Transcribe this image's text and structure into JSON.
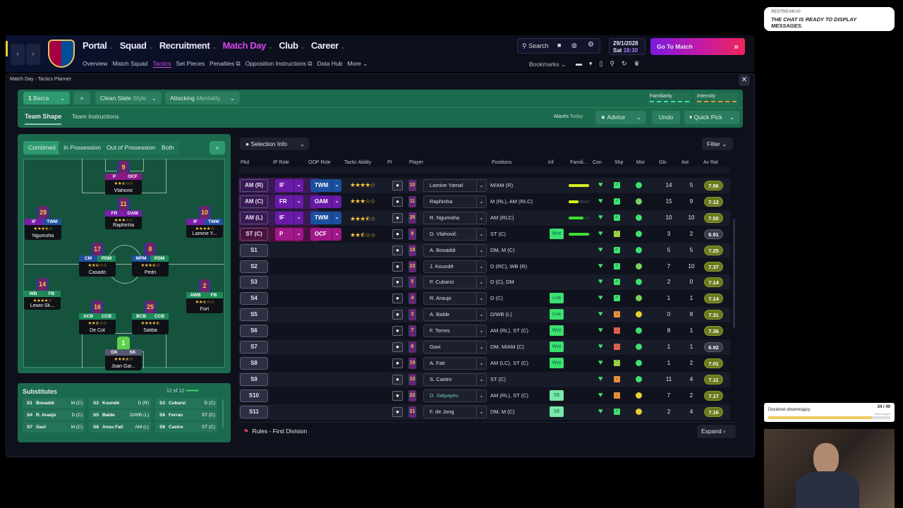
{
  "nav": {
    "main": [
      "Portal",
      "Squad",
      "Recruitment",
      "Match Day",
      "Club",
      "Career"
    ],
    "active_main": "Match Day",
    "sub": [
      "Overview",
      "Match Squad",
      "Tactics",
      "Set Pieces",
      "Penalties",
      "Opposition Instructions",
      "Data Hub",
      "More"
    ],
    "active_sub": "Tactics",
    "search": "Search",
    "date": "29/1/2028",
    "day": "Sat",
    "time": "18:30",
    "go_to_match": "Go To Match",
    "bookmarks": "Bookmarks"
  },
  "breadcrumb": [
    "Match Day",
    "Tactics Planner"
  ],
  "tactic": {
    "slot": "1",
    "name": "Barca",
    "add": "+",
    "style_value": "Clean Slate",
    "style_label": "Style",
    "mentality_value": "Attacking",
    "mentality_label": "Mentality",
    "familiarity": "Familiarity",
    "intensity": "Intensity",
    "tabs": [
      "Team Shape",
      "Team Instructions"
    ],
    "opponent": "Alavés",
    "opponent_when": "Today",
    "advice": "Advice",
    "undo": "Undo",
    "quick_pick": "Quick Pick"
  },
  "pitch": {
    "view_tabs": [
      "Combined",
      "In Possession",
      "Out of Possession",
      "Both"
    ],
    "active_view": "Combined",
    "players": [
      {
        "num": "9",
        "ip": "P",
        "oop": "OCF",
        "stars": 2.5,
        "name": "Vlahović"
      },
      {
        "num": "11",
        "ip": "FR",
        "oop": "OAM",
        "stars": 3,
        "name": "Raphinha"
      },
      {
        "num": "28",
        "ip": "IF",
        "oop": "TWM",
        "stars": 3.5,
        "name": "Ngumoha"
      },
      {
        "num": "10",
        "ip": "IF",
        "oop": "TWM",
        "stars": 4,
        "name": "Lamine Y..."
      },
      {
        "num": "17",
        "ip": "CM",
        "oop": "PDM",
        "stars": 2.5,
        "name": "Casadó"
      },
      {
        "num": "8",
        "ip": "MPM",
        "oop": "PDM",
        "stars": 3.5,
        "name": "Pedri"
      },
      {
        "num": "14",
        "ip": "WB",
        "oop": "FB",
        "stars": 4,
        "name": "Lewis-Sk..."
      },
      {
        "num": "2",
        "ip": "AWB",
        "oop": "FB",
        "stars": 2.5,
        "name": "Fort"
      },
      {
        "num": "16",
        "ip": "ACB",
        "oop": "CCB",
        "stars": 2.5,
        "name": "De Cot"
      },
      {
        "num": "25",
        "ip": "BCB",
        "oop": "CCB",
        "stars": 4.5,
        "name": "Saliba"
      },
      {
        "num": "1",
        "ip": "GK",
        "oop": "SK",
        "stars": 3.5,
        "name": "Joan Gar..."
      }
    ]
  },
  "substitutes": {
    "title": "Substitutes",
    "count": "12 of 12",
    "items": [
      {
        "slot": "S1",
        "name": "Bouaddi",
        "pos": "M (C)"
      },
      {
        "slot": "S2",
        "name": "Koundé",
        "pos": "D (R)"
      },
      {
        "slot": "S3",
        "name": "Cubarsí",
        "pos": "D (C)"
      },
      {
        "slot": "S4",
        "name": "R. Araújo",
        "pos": "D (C)"
      },
      {
        "slot": "S5",
        "name": "Balde",
        "pos": "D/WB (L)"
      },
      {
        "slot": "S6",
        "name": "Ferran",
        "pos": "ST (C)"
      },
      {
        "slot": "S7",
        "name": "Gavi",
        "pos": "M (C)"
      },
      {
        "slot": "S8",
        "name": "Ansu Fati",
        "pos": "AM (L)"
      },
      {
        "slot": "S9",
        "name": "Castro",
        "pos": "ST (C)"
      }
    ]
  },
  "selection": {
    "info_button": "Selection Info",
    "filter": "Filter",
    "columns": [
      "Pkd",
      "IP Role",
      "OOP Role",
      "Tactic Ability",
      "PI",
      "Player",
      "Positions",
      "Inf",
      "Famili...",
      "Con",
      "Shp",
      "Mor",
      "Gls",
      "Ast",
      "Av Rat"
    ],
    "rows": [
      {
        "pkd": "AM (R)",
        "ip": "IF",
        "ip_color": "#6a1aa8",
        "oop": "TWM",
        "oop_color": "#1c4fa0",
        "stars": 4,
        "num": "10",
        "player": "Lamine Yamal",
        "positions": "M/AM (R)",
        "inf": "",
        "famil": 0.95,
        "famil_color": "#d8f020",
        "shp": "good",
        "mor": "#3ce070",
        "gls": "14",
        "ast": "5",
        "rating": "7.56",
        "highlight": "#3a1a55"
      },
      {
        "pkd": "AM (C)",
        "ip": "FR",
        "ip_color": "#6a1aa8",
        "oop": "OAM",
        "oop_color": "#6a1aa8",
        "stars": 3,
        "num": "11",
        "player": "Raphinha",
        "positions": "M (RL), AM (RLC)",
        "inf": "",
        "famil": 0.45,
        "famil_color": "#d8f020",
        "shp": "good",
        "mor": "#7ad060",
        "gls": "15",
        "ast": "9",
        "rating": "7.12",
        "highlight": "#3a1a55"
      },
      {
        "pkd": "AM (L)",
        "ip": "IF",
        "ip_color": "#6a1aa8",
        "oop": "TWM",
        "oop_color": "#1c4fa0",
        "stars": 3.5,
        "num": "28",
        "player": "R. Ngumoha",
        "positions": "AM (RLC)",
        "inf": "",
        "famil": 0.7,
        "famil_color": "#3ce030",
        "shp": "good",
        "mor": "#3ce070",
        "gls": "10",
        "ast": "10",
        "rating": "7.50",
        "highlight": "#3a1a55"
      },
      {
        "pkd": "ST (C)",
        "ip": "P",
        "ip_color": "#a0188a",
        "oop": "OCF",
        "oop_color": "#a0188a",
        "stars": 2.5,
        "num": "9",
        "player": "D. Vlahović",
        "positions": "ST (C)",
        "inf": "Wnt",
        "famil": 0.95,
        "famil_color": "#3ce030",
        "shp": "up",
        "mor": "#3ce070",
        "gls": "3",
        "ast": "2",
        "rating": "6.91",
        "highlight": "#4a1240"
      },
      {
        "pkd": "S1",
        "stars": 0,
        "num": "18",
        "player": "A. Bouaddi",
        "positions": "DM, M (C)",
        "inf": "",
        "shp": "good",
        "mor": "#3ce070",
        "gls": "5",
        "ast": "5",
        "rating": "7.25"
      },
      {
        "pkd": "S2",
        "stars": 0,
        "num": "23",
        "player": "J. Koundé",
        "positions": "D (RC), WB (R)",
        "inf": "",
        "shp": "good",
        "mor": "#7ad060",
        "gls": "7",
        "ast": "10",
        "rating": "7.37"
      },
      {
        "pkd": "S3",
        "stars": 0,
        "num": "5",
        "player": "P. Cubarsí",
        "positions": "D (C), DM",
        "inf": "",
        "shp": "good",
        "mor": "#3ce070",
        "gls": "2",
        "ast": "0",
        "rating": "7.14"
      },
      {
        "pkd": "S4",
        "stars": 0,
        "num": "4",
        "player": "R. Araujo",
        "positions": "D (C)",
        "inf": "Loa",
        "shp": "good",
        "mor": "#7ad060",
        "gls": "1",
        "ast": "1",
        "rating": "7.14"
      },
      {
        "pkd": "S5",
        "stars": 0,
        "num": "3",
        "player": "A. Balde",
        "positions": "D/WB (L)",
        "inf": "Loa",
        "shp": "down",
        "mor": "#e8d030",
        "gls": "0",
        "ast": "8",
        "rating": "7.31"
      },
      {
        "pkd": "S6",
        "stars": 0,
        "num": "7",
        "player": "F. Torres",
        "positions": "AM (RL), ST (C)",
        "inf": "Wnt",
        "shp": "bad",
        "mor": "#3ce070",
        "gls": "8",
        "ast": "1",
        "rating": "7.36"
      },
      {
        "pkd": "S7",
        "stars": 0,
        "num": "6",
        "player": "Gavi",
        "positions": "DM, M/AM (C)",
        "inf": "Wnt",
        "shp": "bad",
        "mor": "#3ce070",
        "gls": "1",
        "ast": "1",
        "rating": "6.92"
      },
      {
        "pkd": "S8",
        "stars": 0,
        "num": "19",
        "player": "A. Fati",
        "positions": "AM (LC), ST (C)",
        "inf": "Wnt",
        "shp": "up",
        "mor": "#3ce070",
        "gls": "1",
        "ast": "2",
        "rating": "7.01"
      },
      {
        "pkd": "S9",
        "stars": 0,
        "num": "15",
        "player": "S. Castro",
        "positions": "ST (C)",
        "inf": "",
        "shp": "down",
        "mor": "#3ce070",
        "gls": "11",
        "ast": "4",
        "rating": "7.11"
      },
      {
        "pkd": "S10",
        "stars": 0,
        "num": "22",
        "player": "D. Satpayev",
        "positions": "AM (RL), ST (C)",
        "inf": "Slt",
        "shp": "down",
        "mor": "#e8d030",
        "gls": "7",
        "ast": "2",
        "rating": "7.17",
        "player_color": "#6fc8c8"
      },
      {
        "pkd": "S11",
        "stars": 0,
        "num": "21",
        "player": "F. de Jong",
        "positions": "DM, M (C)",
        "inf": "Slt",
        "shp": "good",
        "mor": "#e8d030",
        "gls": "2",
        "ast": "4",
        "rating": "7.16"
      }
    ],
    "rules": "Rules - First Division",
    "expand": "Expand"
  },
  "overlay": {
    "chat_source": "RESTREAM.IO",
    "chat_message": "THE CHAT IS READY TO DISPLAY MESSAGES.",
    "goal_label": "Docelowi obserwujący",
    "goal_count": "34 / 40",
    "goal_unit": "Obserwujący",
    "goal_progress": 0.85
  },
  "colors": {
    "accent": "#d946ef",
    "green_panel": "#1c6a4d",
    "go_to_match_start": "#7a1ae0",
    "go_to_match_end": "#f0245a",
    "rating_good": "#6b7a1e",
    "rating_neutral": "#3a3d4a"
  }
}
